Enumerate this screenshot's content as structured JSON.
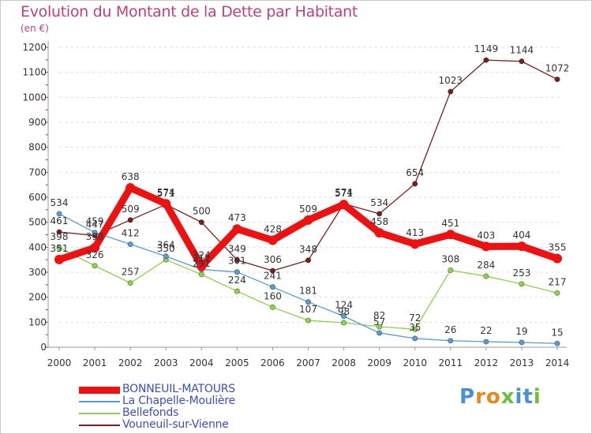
{
  "title": "Evolution du Montant de la Dette par Habitant",
  "unit": "(en €)",
  "brand": {
    "text": "Proxiti",
    "letter_colors": [
      "#4a90d9",
      "#e8861f",
      "#e8861f",
      "#6bbf3a",
      "#4a90d9",
      "#4a90d9",
      "#6bbf3a"
    ]
  },
  "chart_data": {
    "type": "line",
    "x": [
      2000,
      2001,
      2002,
      2003,
      2004,
      2005,
      2006,
      2007,
      2008,
      2009,
      2010,
      2011,
      2012,
      2013,
      2014
    ],
    "xlabels": [
      "2000",
      "2001",
      "2002",
      "2003",
      "2004",
      "2005",
      "2006",
      "2007",
      "2008",
      "2009",
      "2010",
      "2011",
      "2012",
      "2013",
      "2014"
    ],
    "ylim": [
      0,
      1200
    ],
    "yticks": [
      0,
      100,
      200,
      300,
      400,
      500,
      600,
      700,
      800,
      900,
      1000,
      1100,
      1200
    ],
    "ytick_labels": [
      "0",
      "100",
      "200",
      "300",
      "400",
      "500",
      "600",
      "700",
      "800",
      "900",
      "1000",
      "1100",
      "1200"
    ],
    "grid": true,
    "legend_position": "bottom-left",
    "series": [
      {
        "name": "Vouneuil-sur-Vienne",
        "color": "#7a1f1f",
        "values": [
          461,
          447,
          509,
          571,
          500,
          349,
          306,
          348,
          574,
          534,
          654,
          1023,
          1149,
          1144,
          1072
        ],
        "labels": [
          "461",
          "447",
          "509",
          "571",
          "500",
          "349",
          "306",
          "348",
          "574",
          "534",
          "654",
          "1023",
          "1149",
          "1144",
          "1072"
        ]
      },
      {
        "name": "Bellefonds",
        "color": "#8ed14d",
        "values": [
          398,
          326,
          257,
          350,
          291,
          224,
          160,
          107,
          98,
          82,
          72,
          308,
          284,
          253,
          217
        ],
        "labels": [
          "398",
          "326",
          "257",
          "350",
          "291",
          "224",
          "160",
          "107",
          "98",
          "82",
          "72",
          "308",
          "284",
          "253",
          "217"
        ]
      },
      {
        "name": "La Chapelle-Moulière",
        "color": "#5a9bd4",
        "values": [
          534,
          459,
          412,
          364,
          311,
          301,
          241,
          181,
          124,
          57,
          35,
          26,
          22,
          19,
          15
        ],
        "labels": [
          "534",
          "459",
          "412",
          "364",
          "311",
          "301",
          "241",
          "181",
          "124",
          "57",
          "35",
          "26",
          "22",
          "19",
          "15"
        ]
      },
      {
        "name": "BONNEUIL-MATOURS",
        "color": "#ee1111",
        "values": [
          351,
          398,
          638,
          574,
          324,
          473,
          428,
          509,
          571,
          458,
          413,
          451,
          403,
          404,
          355
        ],
        "labels": [
          "351",
          "398",
          "638",
          "574",
          "324",
          "473",
          "428",
          "509",
          "571",
          "458",
          "413",
          "451",
          "403",
          "404",
          "355"
        ]
      }
    ]
  },
  "legend": [
    {
      "name": "BONNEUIL-MATOURS",
      "color": "#ee1111",
      "weight": 9
    },
    {
      "name": "La Chapelle-Moulière",
      "color": "#5a9bd4",
      "weight": 2
    },
    {
      "name": "Bellefonds",
      "color": "#8ed14d",
      "weight": 2
    },
    {
      "name": "Vouneuil-sur-Vienne",
      "color": "#7a1f1f",
      "weight": 2
    }
  ]
}
